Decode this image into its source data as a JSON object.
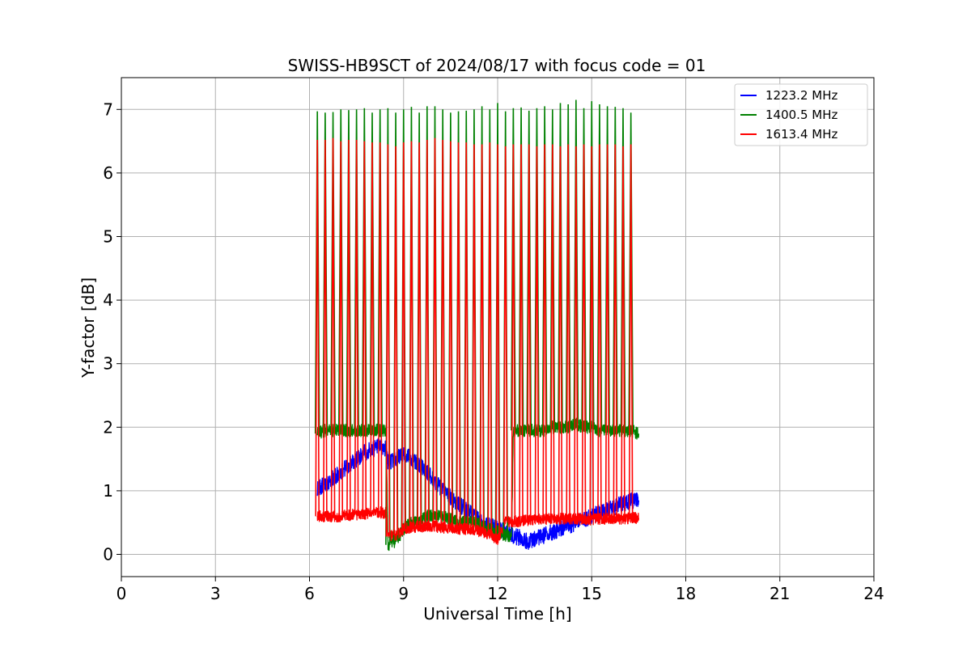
{
  "chart_data": {
    "type": "line",
    "title": "SWISS-HB9SCT of 2024/08/17 with focus code = 01",
    "xlabel": "Universal Time [h]",
    "ylabel": "Y-factor [dB]",
    "xlim": [
      0,
      24
    ],
    "ylim": [
      -0.35,
      7.5
    ],
    "xticks": [
      0,
      3,
      6,
      9,
      12,
      15,
      18,
      21,
      24
    ],
    "yticks": [
      0,
      1,
      2,
      3,
      4,
      5,
      6,
      7
    ],
    "grid": true,
    "legend_position": "top-right",
    "series": [
      {
        "name": "1223.2 MHz",
        "color": "#0000ff",
        "x": [
          6.25,
          6.5,
          6.75,
          7.0,
          7.25,
          7.5,
          7.75,
          8.0,
          8.25,
          8.45,
          8.5,
          8.75,
          9.0,
          9.25,
          9.5,
          9.75,
          10.0,
          10.25,
          10.5,
          10.75,
          11.0,
          11.25,
          11.5,
          11.75,
          12.0,
          12.25,
          12.5,
          12.75,
          13.0,
          13.25,
          13.5,
          13.75,
          14.0,
          14.25,
          14.5,
          14.75,
          15.0,
          15.25,
          15.5,
          15.75,
          16.0,
          16.25,
          16.5
        ],
        "y": [
          1.05,
          1.1,
          1.2,
          1.3,
          1.4,
          1.5,
          1.6,
          1.65,
          1.7,
          1.65,
          1.45,
          1.5,
          1.6,
          1.5,
          1.4,
          1.3,
          1.15,
          1.0,
          0.9,
          0.8,
          0.7,
          0.6,
          0.5,
          0.45,
          0.4,
          0.35,
          0.3,
          0.25,
          0.2,
          0.25,
          0.3,
          0.35,
          0.4,
          0.45,
          0.5,
          0.55,
          0.6,
          0.65,
          0.7,
          0.75,
          0.8,
          0.85,
          0.85
        ]
      },
      {
        "name": "1400.5 MHz",
        "color": "#008000",
        "x": [
          6.25,
          6.5,
          6.75,
          7.0,
          7.25,
          7.5,
          7.75,
          8.0,
          8.25,
          8.45,
          8.5,
          8.75,
          9.0,
          9.25,
          9.5,
          9.75,
          10.0,
          10.25,
          10.5,
          10.75,
          11.0,
          11.25,
          11.5,
          11.75,
          12.0,
          12.25,
          12.45,
          12.5,
          12.75,
          13.0,
          13.25,
          13.5,
          13.75,
          14.0,
          14.25,
          14.5,
          14.75,
          15.0,
          15.25,
          15.5,
          15.75,
          16.0,
          16.25,
          16.5
        ],
        "y": [
          1.9,
          1.95,
          1.95,
          1.95,
          1.95,
          1.95,
          1.95,
          1.95,
          1.95,
          1.95,
          0.15,
          0.2,
          0.4,
          0.5,
          0.55,
          0.6,
          0.6,
          0.6,
          0.55,
          0.5,
          0.5,
          0.5,
          0.45,
          0.4,
          0.35,
          0.3,
          0.3,
          1.95,
          1.95,
          1.95,
          1.95,
          1.95,
          2.0,
          2.0,
          2.0,
          2.05,
          2.0,
          2.0,
          1.95,
          1.95,
          1.95,
          1.95,
          1.95,
          1.9
        ]
      },
      {
        "name": "1613.4 MHz",
        "color": "#ff0000",
        "x": [
          6.25,
          6.5,
          6.75,
          7.0,
          7.25,
          7.5,
          7.75,
          8.0,
          8.25,
          8.45,
          8.5,
          8.75,
          9.0,
          9.25,
          9.5,
          9.75,
          10.0,
          10.25,
          10.5,
          10.75,
          11.0,
          11.25,
          11.5,
          11.75,
          12.0,
          12.25,
          12.5,
          12.75,
          13.0,
          13.25,
          13.5,
          13.75,
          14.0,
          14.25,
          14.5,
          14.75,
          15.0,
          15.25,
          15.5,
          15.75,
          16.0,
          16.25,
          16.5
        ],
        "y": [
          0.6,
          0.6,
          0.6,
          0.6,
          0.62,
          0.62,
          0.64,
          0.65,
          0.66,
          0.65,
          0.28,
          0.3,
          0.4,
          0.42,
          0.44,
          0.44,
          0.44,
          0.42,
          0.42,
          0.4,
          0.4,
          0.38,
          0.36,
          0.32,
          0.22,
          0.5,
          0.52,
          0.52,
          0.54,
          0.55,
          0.56,
          0.56,
          0.56,
          0.56,
          0.56,
          0.55,
          0.55,
          0.56,
          0.56,
          0.56,
          0.56,
          0.57,
          0.57
        ]
      }
    ],
    "calibration_spikes": {
      "x": [
        6.25,
        6.5,
        6.75,
        7.0,
        7.25,
        7.5,
        7.75,
        8.0,
        8.25,
        8.5,
        8.75,
        9.0,
        9.25,
        9.5,
        9.75,
        10.0,
        10.25,
        10.5,
        10.75,
        11.0,
        11.25,
        11.5,
        11.75,
        12.0,
        12.25,
        12.5,
        12.75,
        13.0,
        13.25,
        13.5,
        13.75,
        14.0,
        14.25,
        14.5,
        14.75,
        15.0,
        15.25,
        15.5,
        15.75,
        16.0,
        16.25
      ],
      "green_peak": [
        6.97,
        6.95,
        6.96,
        7.0,
        6.99,
        7.0,
        7.02,
        6.95,
        7.0,
        7.02,
        6.95,
        7.0,
        7.04,
        6.95,
        7.05,
        7.05,
        7.0,
        6.95,
        6.97,
        6.98,
        7.0,
        7.05,
        7.0,
        7.1,
        6.97,
        7.02,
        7.03,
        6.98,
        7.02,
        7.05,
        7.0,
        7.1,
        7.08,
        7.15,
        7.02,
        7.13,
        7.08,
        7.05,
        7.04,
        7.02,
        6.95
      ],
      "red_peak": [
        6.52,
        6.52,
        6.55,
        6.5,
        6.52,
        6.52,
        6.5,
        6.48,
        6.48,
        6.45,
        6.42,
        6.48,
        6.5,
        6.48,
        6.52,
        6.55,
        6.52,
        6.5,
        6.48,
        6.48,
        6.45,
        6.45,
        6.48,
        6.45,
        6.42,
        6.45,
        6.45,
        6.45,
        6.42,
        6.45,
        6.45,
        6.42,
        6.45,
        6.42,
        6.45,
        6.42,
        6.45,
        6.45,
        6.45,
        6.42,
        6.45
      ]
    }
  }
}
